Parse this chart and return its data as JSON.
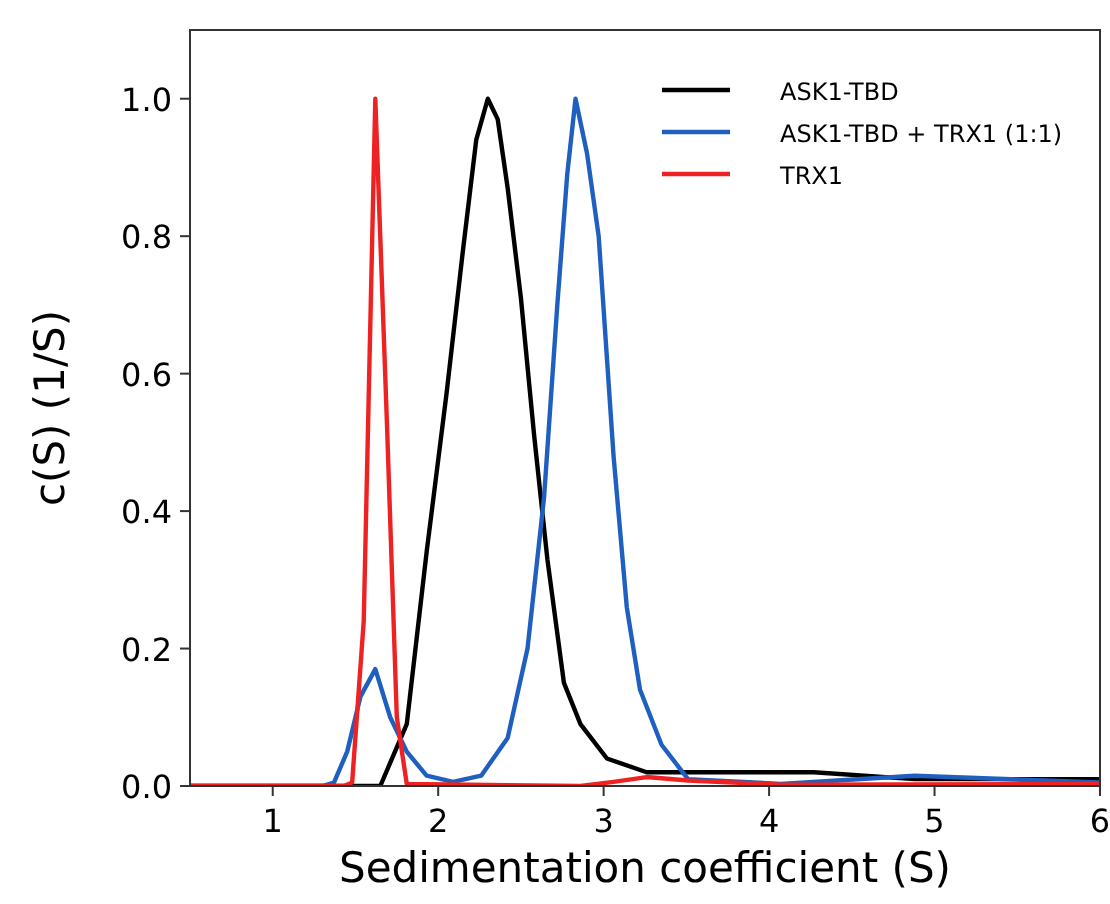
{
  "chart_data": {
    "type": "line",
    "xlabel": "Sedimentation coefficient (S)",
    "ylabel": "c(S) (1/S)",
    "xlim": [
      0.5,
      6
    ],
    "xticks": [
      1,
      2,
      3,
      4,
      5,
      6
    ],
    "ylim": [
      0,
      1.1
    ],
    "yticks": [
      {
        "value": 0,
        "label": "0.0"
      },
      {
        "value": 0.2,
        "label": "0.2"
      },
      {
        "value": 0.4,
        "label": "0.4"
      },
      {
        "value": 0.6,
        "label": "0.6"
      },
      {
        "value": 0.8,
        "label": "0.8"
      },
      {
        "value": 1.0,
        "label": "1.0"
      }
    ],
    "grid": false,
    "legend": "top right",
    "marker": "none",
    "line_style": "solid",
    "series": [
      {
        "name": "ASK1-TBD",
        "color": "#000000",
        "x": [
          0.5,
          1.65,
          1.81,
          1.93,
          2.05,
          2.15,
          2.23,
          2.3,
          2.36,
          2.42,
          2.5,
          2.58,
          2.66,
          2.76,
          2.86,
          3.02,
          3.26,
          3.55,
          4.27,
          4.88,
          6.0
        ],
        "values": [
          0,
          0,
          0.09,
          0.34,
          0.57,
          0.78,
          0.94,
          1.0,
          0.97,
          0.87,
          0.71,
          0.51,
          0.33,
          0.15,
          0.09,
          0.04,
          0.02,
          0.02,
          0.02,
          0.01,
          0.01
        ]
      },
      {
        "name": "ASK1-TBD + TRX1 (1:1)",
        "color": "#1f5fbf",
        "x": [
          0.5,
          1.3,
          1.37,
          1.45,
          1.53,
          1.62,
          1.71,
          1.81,
          1.93,
          2.09,
          2.26,
          2.42,
          2.54,
          2.64,
          2.72,
          2.78,
          2.83,
          2.9,
          2.97,
          3.06,
          3.14,
          3.22,
          3.35,
          3.51,
          4.07,
          4.88,
          6.0
        ],
        "values": [
          0,
          0,
          0.005,
          0.05,
          0.13,
          0.17,
          0.1,
          0.05,
          0.015,
          0.006,
          0.015,
          0.07,
          0.2,
          0.42,
          0.7,
          0.89,
          1.0,
          0.92,
          0.8,
          0.48,
          0.26,
          0.14,
          0.06,
          0.01,
          0.003,
          0.015,
          0.005
        ]
      },
      {
        "name": "TRX1",
        "color": "#ee2222",
        "x": [
          0.5,
          1.43,
          1.48,
          1.55,
          1.62,
          1.69,
          1.75,
          1.81,
          2.86,
          3.06,
          3.26,
          3.51,
          4.07,
          6.0
        ],
        "values": [
          0,
          0,
          0.005,
          0.24,
          1.0,
          0.53,
          0.1,
          0.003,
          0,
          0.006,
          0.013,
          0.008,
          0.002,
          0.003
        ]
      }
    ]
  }
}
